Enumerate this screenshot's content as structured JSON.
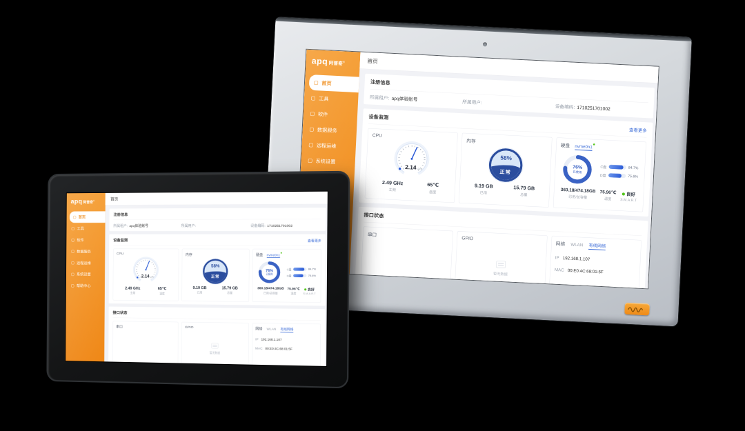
{
  "brand": {
    "logo_text": "apq",
    "logo_suffix": "阿普奇",
    "logo_reg": "®"
  },
  "colors": {
    "accent_orange": "#ef8a16",
    "accent_blue": "#3d6dd8",
    "liquid_navy": "#2b4d9e",
    "status_green": "#52c41a"
  },
  "dashboard": {
    "page_title": "首页",
    "sidebar": {
      "items": [
        {
          "label": "首页",
          "active": true
        },
        {
          "label": "工具",
          "active": false
        },
        {
          "label": "软件",
          "active": false
        },
        {
          "label": "数据服务",
          "active": false
        },
        {
          "label": "远程运维",
          "active": false
        },
        {
          "label": "系统设置",
          "active": false
        },
        {
          "label": "帮助中心",
          "active": false
        }
      ]
    },
    "register_card": {
      "title": "注册信息",
      "fields": [
        {
          "label": "所属租户:",
          "value": "apq体验账号"
        },
        {
          "label": "所属用户:",
          "value": ""
        },
        {
          "label": "设备编码:",
          "value": "1710251701002"
        }
      ]
    },
    "monitor_card": {
      "title": "设备监测",
      "more_link": "查看更多",
      "cpu": {
        "title": "CPU",
        "gauge_value": "2.14",
        "gauge_unit": "GHz",
        "freq": "2.49 GHz",
        "freq_label": "主频",
        "temp": "65℃",
        "temp_label": "温度"
      },
      "memory": {
        "title": "内存",
        "percent": "58%",
        "status": "正常",
        "used": "9.19 GB",
        "used_label": "已用",
        "total": "15.79 GB",
        "total_label": "总量"
      },
      "disk": {
        "title": "硬盘",
        "device_tab": "nvme0n1",
        "percent": "76%",
        "percent_label": "已使用",
        "partitions": [
          {
            "label": "C盘",
            "percent": "84.7%",
            "fill": 84.7
          },
          {
            "label": "D盘",
            "percent": "75.6%",
            "fill": 75.6
          }
        ],
        "usage": "360.18/474.18GB",
        "usage_label": "已用/总容量",
        "temp": "75.96℃",
        "temp_label": "温度",
        "health": "良好",
        "health_label": "S.M.A.R.T"
      }
    },
    "interface_card": {
      "title": "接口状态",
      "serial": {
        "title": "串口"
      },
      "gpio": {
        "title": "GPIO",
        "empty_text": "暂无数据"
      },
      "network": {
        "title": "网络",
        "tabs": [
          {
            "label": "WLAN",
            "active": false
          },
          {
            "label": "有线网络",
            "active": true
          }
        ],
        "rows": [
          {
            "label": "IP",
            "value": "192.168.1.107"
          },
          {
            "label": "MAC",
            "value": "00:E0:4C:68:01:5F"
          }
        ]
      }
    }
  }
}
